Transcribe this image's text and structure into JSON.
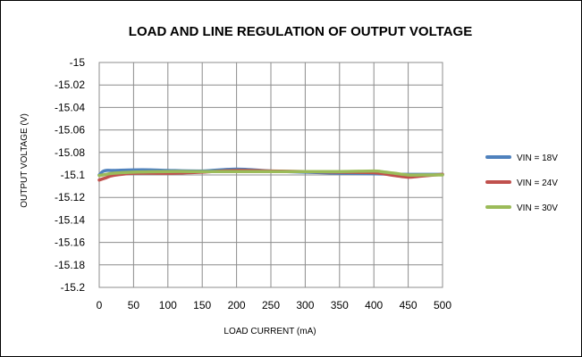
{
  "chart_data": {
    "type": "line",
    "title": "LOAD AND LINE REGULATION OF OUTPUT VOLTAGE",
    "xlabel": "LOAD CURRENT (mA)",
    "ylabel": "OUTPUT VOLTAGE (V)",
    "xlim": [
      0,
      500
    ],
    "ylim": [
      -15.2,
      -15
    ],
    "xticks": [
      0,
      50,
      100,
      150,
      200,
      250,
      300,
      350,
      400,
      450,
      500
    ],
    "yticks": [
      -15,
      -15.02,
      -15.04,
      -15.06,
      -15.08,
      -15.1,
      -15.12,
      -15.14,
      -15.16,
      -15.18,
      -15.2
    ],
    "grid": true,
    "legend_position": "right",
    "series": [
      {
        "name": "VIN = 18V",
        "color": "#4F81BD",
        "x": [
          0,
          5,
          10,
          20,
          50,
          75,
          100,
          150,
          200,
          250,
          300,
          350,
          400,
          450,
          500
        ],
        "y": [
          -15.1,
          -15.097,
          -15.096,
          -15.096,
          -15.0955,
          -15.0955,
          -15.096,
          -15.0965,
          -15.0948,
          -15.0965,
          -15.0975,
          -15.0985,
          -15.099,
          -15.0995,
          -15.0995
        ]
      },
      {
        "name": "VIN = 24V",
        "color": "#C0504D",
        "x": [
          0,
          10,
          20,
          50,
          100,
          150,
          200,
          250,
          300,
          350,
          400,
          430,
          450,
          470,
          500
        ],
        "y": [
          -15.1045,
          -15.1025,
          -15.1005,
          -15.0985,
          -15.0985,
          -15.0975,
          -15.096,
          -15.0965,
          -15.097,
          -15.0975,
          -15.098,
          -15.1005,
          -15.102,
          -15.101,
          -15.0995
        ]
      },
      {
        "name": "VIN = 30V",
        "color": "#9BBB59",
        "x": [
          0,
          10,
          20,
          50,
          100,
          150,
          200,
          250,
          300,
          350,
          400,
          410,
          430,
          450,
          470,
          500
        ],
        "y": [
          -15.1005,
          -15.0995,
          -15.0985,
          -15.0975,
          -15.097,
          -15.097,
          -15.097,
          -15.097,
          -15.097,
          -15.097,
          -15.0965,
          -15.097,
          -15.0985,
          -15.1,
          -15.1,
          -15.1
        ]
      }
    ]
  }
}
